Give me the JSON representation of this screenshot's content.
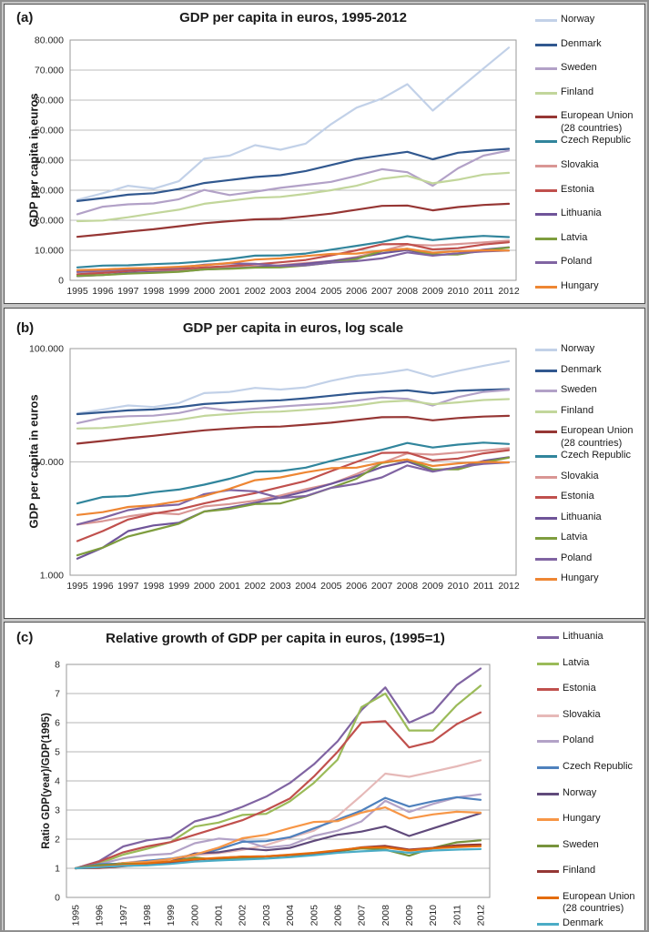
{
  "chart_data": [
    {
      "id": "a",
      "panel_label": "(a)",
      "title": "GDP per capita in euros, 1995-2012",
      "ylabel": "GDP per capita in euros",
      "type": "line",
      "scale": "linear",
      "grid": true,
      "legend_position": "right",
      "ylim": [
        0,
        80000
      ],
      "yticks": [
        {
          "v": 0,
          "label": "0"
        },
        {
          "v": 10000,
          "label": "10.000"
        },
        {
          "v": 20000,
          "label": "20.000"
        },
        {
          "v": 30000,
          "label": "30.000"
        },
        {
          "v": 40000,
          "label": "40.000"
        },
        {
          "v": 50000,
          "label": "50.000"
        },
        {
          "v": 60000,
          "label": "60.000"
        },
        {
          "v": 70000,
          "label": "70.000"
        },
        {
          "v": 80000,
          "label": "80.000"
        }
      ],
      "categories": [
        "1995",
        "1996",
        "1997",
        "1998",
        "1999",
        "2000",
        "2001",
        "2002",
        "2003",
        "2004",
        "2005",
        "2006",
        "2007",
        "2008",
        "2009",
        "2010",
        "2011",
        "2012"
      ],
      "series": [
        {
          "name": "Norway",
          "color": "#c2d1e8",
          "values": [
            26800,
            29000,
            31500,
            30500,
            33000,
            40500,
            41500,
            45000,
            43500,
            45500,
            52000,
            57500,
            60500,
            65300,
            56500,
            63500,
            70500,
            77500
          ]
        },
        {
          "name": "Denmark",
          "color": "#31588f",
          "values": [
            26400,
            27400,
            28500,
            29000,
            30400,
            32400,
            33400,
            34400,
            35000,
            36400,
            38400,
            40400,
            41600,
            42800,
            40300,
            42500,
            43200,
            43800
          ]
        },
        {
          "name": "Sweden",
          "color": "#b2a1c7",
          "values": [
            22000,
            24500,
            25300,
            25600,
            27000,
            30100,
            28400,
            29500,
            30800,
            31800,
            32800,
            34800,
            37000,
            36000,
            31500,
            37300,
            41500,
            43200
          ]
        },
        {
          "name": "Finland",
          "color": "#c2d69b",
          "values": [
            19700,
            19900,
            21000,
            22300,
            23500,
            25500,
            26500,
            27500,
            27800,
            28800,
            30000,
            31500,
            33800,
            34800,
            32300,
            33500,
            35200,
            35800
          ]
        },
        {
          "name": "European Union (28 countries)",
          "color": "#963634",
          "values": [
            14500,
            15300,
            16200,
            17000,
            18000,
            19000,
            19700,
            20300,
            20500,
            21300,
            22200,
            23500,
            24800,
            24900,
            23300,
            24400,
            25100,
            25500
          ]
        },
        {
          "name": "Czech Republic",
          "color": "#31859c",
          "values": [
            4300,
            4900,
            5000,
            5400,
            5700,
            6300,
            7100,
            8200,
            8300,
            8900,
            10200,
            11500,
            12800,
            14700,
            13400,
            14200,
            14800,
            14400
          ]
        },
        {
          "name": "Slovakia",
          "color": "#d99694",
          "values": [
            2800,
            3000,
            3300,
            3550,
            3450,
            4050,
            4250,
            4550,
            5050,
            5750,
            6400,
            7800,
            9800,
            11900,
            11600,
            12100,
            12600,
            13200
          ]
        },
        {
          "name": "Estonia",
          "color": "#c0504d",
          "values": [
            2000,
            2450,
            3100,
            3500,
            3800,
            4300,
            4800,
            5300,
            6000,
            6800,
            8300,
            10000,
            12000,
            12100,
            10300,
            10700,
            11900,
            12700
          ]
        },
        {
          "name": "Lithuania",
          "color": "#6f5499",
          "values": [
            1400,
            1750,
            2450,
            2750,
            2900,
            3650,
            3950,
            4350,
            4850,
            5500,
            6400,
            7500,
            9000,
            10100,
            8400,
            8900,
            10200,
            11000
          ]
        },
        {
          "name": "Latvia",
          "color": "#7e9d3e",
          "values": [
            1500,
            1750,
            2200,
            2500,
            2850,
            3650,
            3850,
            4250,
            4300,
            4950,
            5900,
            7100,
            9800,
            10500,
            8600,
            8600,
            9900,
            10900
          ]
        },
        {
          "name": "Poland",
          "color": "#8064a2",
          "values": [
            2800,
            3200,
            3750,
            4050,
            4200,
            5200,
            5650,
            5500,
            4800,
            5000,
            5900,
            6400,
            7300,
            9300,
            8200,
            9000,
            9600,
            9900
          ]
        },
        {
          "name": "Hungary",
          "color": "#ee8633",
          "values": [
            3400,
            3600,
            4000,
            4150,
            4500,
            5000,
            5800,
            6900,
            7300,
            8100,
            8800,
            8900,
            9900,
            10500,
            9200,
            9700,
            10000,
            9900
          ]
        }
      ]
    },
    {
      "id": "b",
      "panel_label": "(b)",
      "title": "GDP per capita in euros, log scale",
      "ylabel": "GDP per capita in euros",
      "type": "line",
      "scale": "log",
      "grid": true,
      "legend_position": "right",
      "ylim": [
        1000,
        100000
      ],
      "yticks": [
        {
          "v": 1000,
          "label": "1.000"
        },
        {
          "v": 10000,
          "label": "10.000"
        },
        {
          "v": 100000,
          "label": "100.000"
        }
      ],
      "categories": [
        "1995",
        "1996",
        "1997",
        "1998",
        "1999",
        "2000",
        "2001",
        "2002",
        "2003",
        "2004",
        "2005",
        "2006",
        "2007",
        "2008",
        "2009",
        "2010",
        "2011",
        "2012"
      ],
      "series": [
        {
          "name": "Norway",
          "color": "#c2d1e8",
          "values": [
            26800,
            29000,
            31500,
            30500,
            33000,
            40500,
            41500,
            45000,
            43500,
            45500,
            52000,
            57500,
            60500,
            65300,
            56500,
            63500,
            70500,
            77500
          ]
        },
        {
          "name": "Denmark",
          "color": "#31588f",
          "values": [
            26400,
            27400,
            28500,
            29000,
            30400,
            32400,
            33400,
            34400,
            35000,
            36400,
            38400,
            40400,
            41600,
            42800,
            40300,
            42500,
            43200,
            43800
          ]
        },
        {
          "name": "Sweden",
          "color": "#b2a1c7",
          "values": [
            22000,
            24500,
            25300,
            25600,
            27000,
            30100,
            28400,
            29500,
            30800,
            31800,
            32800,
            34800,
            37000,
            36000,
            31500,
            37300,
            41500,
            43200
          ]
        },
        {
          "name": "Finland",
          "color": "#c2d69b",
          "values": [
            19700,
            19900,
            21000,
            22300,
            23500,
            25500,
            26500,
            27500,
            27800,
            28800,
            30000,
            31500,
            33800,
            34800,
            32300,
            33500,
            35200,
            35800
          ]
        },
        {
          "name": "European Union (28 countries)",
          "color": "#963634",
          "values": [
            14500,
            15300,
            16200,
            17000,
            18000,
            19000,
            19700,
            20300,
            20500,
            21300,
            22200,
            23500,
            24800,
            24900,
            23300,
            24400,
            25100,
            25500
          ]
        },
        {
          "name": "Czech Republic",
          "color": "#31859c",
          "values": [
            4300,
            4900,
            5000,
            5400,
            5700,
            6300,
            7100,
            8200,
            8300,
            8900,
            10200,
            11500,
            12800,
            14700,
            13400,
            14200,
            14800,
            14400
          ]
        },
        {
          "name": "Slovakia",
          "color": "#d99694",
          "values": [
            2800,
            3000,
            3300,
            3550,
            3450,
            4050,
            4250,
            4550,
            5050,
            5750,
            6400,
            7800,
            9800,
            11900,
            11600,
            12100,
            12600,
            13200
          ]
        },
        {
          "name": "Estonia",
          "color": "#c0504d",
          "values": [
            2000,
            2450,
            3100,
            3500,
            3800,
            4300,
            4800,
            5300,
            6000,
            6800,
            8300,
            10000,
            12000,
            12100,
            10300,
            10700,
            11900,
            12700
          ]
        },
        {
          "name": "Lithuania",
          "color": "#6f5499",
          "values": [
            1400,
            1750,
            2450,
            2750,
            2900,
            3650,
            3950,
            4350,
            4850,
            5500,
            6400,
            7500,
            9000,
            10100,
            8400,
            8900,
            10200,
            11000
          ]
        },
        {
          "name": "Latvia",
          "color": "#7e9d3e",
          "values": [
            1500,
            1750,
            2200,
            2500,
            2850,
            3650,
            3850,
            4250,
            4300,
            4950,
            5900,
            7100,
            9800,
            10500,
            8600,
            8600,
            9900,
            10900
          ]
        },
        {
          "name": "Poland",
          "color": "#8064a2",
          "values": [
            2800,
            3200,
            3750,
            4050,
            4200,
            5200,
            5650,
            5500,
            4800,
            5000,
            5900,
            6400,
            7300,
            9300,
            8200,
            9000,
            9600,
            9900
          ]
        },
        {
          "name": "Hungary",
          "color": "#ee8633",
          "values": [
            3400,
            3600,
            4000,
            4150,
            4500,
            5000,
            5800,
            6900,
            7300,
            8100,
            8800,
            8900,
            9900,
            10500,
            9200,
            9700,
            10000,
            9900
          ]
        }
      ]
    },
    {
      "id": "c",
      "panel_label": "(c)",
      "title": "Relative growth of GDP per capita in euros, (1995=1)",
      "ylabel": "Ratio GDP(year)/GDP(1995)",
      "type": "line",
      "scale": "linear",
      "grid": true,
      "legend_position": "right",
      "ylim": [
        0,
        8
      ],
      "yticks": [
        {
          "v": 0,
          "label": "0"
        },
        {
          "v": 1,
          "label": "1"
        },
        {
          "v": 2,
          "label": "2"
        },
        {
          "v": 3,
          "label": "3"
        },
        {
          "v": 4,
          "label": "4"
        },
        {
          "v": 5,
          "label": "5"
        },
        {
          "v": 6,
          "label": "6"
        },
        {
          "v": 7,
          "label": "7"
        },
        {
          "v": 8,
          "label": "8"
        }
      ],
      "categories": [
        "1995",
        "1996",
        "1997",
        "1998",
        "1999",
        "2000",
        "2001",
        "2002",
        "2003",
        "2004",
        "2005",
        "2006",
        "2007",
        "2008",
        "2009",
        "2010",
        "2011",
        "2012"
      ],
      "x_labels_rotated": true,
      "series": [
        {
          "name": "Lithuania",
          "color": "#8064a2",
          "values": [
            1,
            1.25,
            1.75,
            1.96,
            2.07,
            2.61,
            2.82,
            3.11,
            3.46,
            3.93,
            4.57,
            5.36,
            6.43,
            7.21,
            6.0,
            6.36,
            7.29,
            7.86
          ]
        },
        {
          "name": "Latvia",
          "color": "#9bbb59",
          "values": [
            1,
            1.17,
            1.47,
            1.67,
            1.9,
            2.43,
            2.57,
            2.83,
            2.87,
            3.3,
            3.93,
            4.73,
            6.53,
            7.0,
            5.73,
            5.73,
            6.6,
            7.27
          ]
        },
        {
          "name": "Estonia",
          "color": "#c0504d",
          "values": [
            1,
            1.23,
            1.55,
            1.75,
            1.9,
            2.15,
            2.4,
            2.65,
            3.0,
            3.4,
            4.15,
            5.0,
            6.0,
            6.05,
            5.15,
            5.35,
            5.95,
            6.35
          ]
        },
        {
          "name": "Slovakia",
          "color": "#e6b9b8",
          "values": [
            1,
            1.07,
            1.18,
            1.27,
            1.23,
            1.45,
            1.52,
            1.63,
            1.8,
            2.05,
            2.29,
            2.79,
            3.5,
            4.25,
            4.14,
            4.32,
            4.5,
            4.71
          ]
        },
        {
          "name": "Poland",
          "color": "#b3a2c7",
          "values": [
            1,
            1.14,
            1.34,
            1.45,
            1.5,
            1.86,
            2.02,
            1.96,
            1.71,
            1.79,
            2.11,
            2.29,
            2.61,
            3.32,
            2.93,
            3.21,
            3.43,
            3.54
          ]
        },
        {
          "name": "Czech Republic",
          "color": "#4f81bd",
          "values": [
            1,
            1.14,
            1.16,
            1.26,
            1.33,
            1.47,
            1.65,
            1.91,
            1.93,
            2.07,
            2.37,
            2.67,
            2.98,
            3.42,
            3.12,
            3.3,
            3.44,
            3.35
          ]
        },
        {
          "name": "Norway",
          "color": "#604a7b",
          "values": [
            1,
            1.08,
            1.18,
            1.14,
            1.23,
            1.51,
            1.55,
            1.68,
            1.62,
            1.7,
            1.94,
            2.15,
            2.26,
            2.44,
            2.11,
            2.37,
            2.63,
            2.89
          ]
        },
        {
          "name": "Hungary",
          "color": "#f79646",
          "values": [
            1,
            1.06,
            1.18,
            1.22,
            1.32,
            1.47,
            1.71,
            2.03,
            2.15,
            2.38,
            2.59,
            2.62,
            2.91,
            3.09,
            2.71,
            2.85,
            2.94,
            2.91
          ]
        },
        {
          "name": "Sweden",
          "color": "#77933c",
          "values": [
            1,
            1.11,
            1.15,
            1.16,
            1.23,
            1.37,
            1.29,
            1.34,
            1.4,
            1.45,
            1.49,
            1.58,
            1.68,
            1.64,
            1.43,
            1.7,
            1.89,
            1.96
          ]
        },
        {
          "name": "Finland",
          "color": "#953735",
          "values": [
            1,
            1.01,
            1.07,
            1.13,
            1.19,
            1.29,
            1.35,
            1.4,
            1.41,
            1.46,
            1.52,
            1.6,
            1.72,
            1.77,
            1.64,
            1.7,
            1.79,
            1.82
          ]
        },
        {
          "name": "European Union (28 countries)",
          "color": "#e46c0a",
          "values": [
            1,
            1.06,
            1.12,
            1.17,
            1.24,
            1.31,
            1.36,
            1.4,
            1.41,
            1.47,
            1.53,
            1.62,
            1.71,
            1.72,
            1.61,
            1.68,
            1.73,
            1.76
          ]
        },
        {
          "name": "Denmark",
          "color": "#4bacc6",
          "values": [
            1,
            1.04,
            1.08,
            1.1,
            1.15,
            1.23,
            1.27,
            1.3,
            1.33,
            1.38,
            1.45,
            1.53,
            1.58,
            1.62,
            1.53,
            1.61,
            1.64,
            1.66
          ]
        }
      ]
    }
  ]
}
